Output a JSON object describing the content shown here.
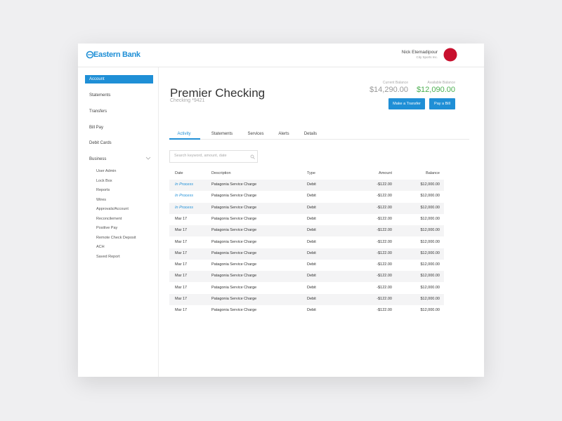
{
  "header": {
    "logo": "Eastern Bank",
    "user_name": "Nick Etemadipour",
    "company": "City Sports Inc."
  },
  "sidebar": {
    "items": [
      "Account",
      "Statements",
      "Transfers",
      "Bill Pay",
      "Debit Cards",
      "Business"
    ],
    "sub_items": [
      "User Admin",
      "Lock Box",
      "Reports",
      "Wires",
      "Approvals/Account",
      "Reconcilement",
      "Positive Pay",
      "Remote Check Deposit",
      "ACH",
      "Saved Report"
    ]
  },
  "account": {
    "title": "Premier Checking",
    "number": "Checking *9421",
    "current_balance_label": "Current Balance",
    "current_balance": "$14,290.00",
    "available_balance_label": "Available Balance",
    "available_balance": "$12,090.00"
  },
  "buttons": [
    "Make a Transfer",
    "Pay a Bill"
  ],
  "tabs": [
    "Activity",
    "Statements",
    "Services",
    "Alerts",
    "Details"
  ],
  "search_placeholder": "Search keyword, amount, date",
  "table": {
    "columns": [
      "Date",
      "Description",
      "Type",
      "Amount",
      "Balance"
    ],
    "rows": [
      [
        "In Process",
        "Patagonia Service Charge",
        "Debit",
        "-$122.00",
        "$12,000.00"
      ],
      [
        "In Process",
        "Patagonia Service Charge",
        "Debit",
        "-$122.00",
        "$12,000.00"
      ],
      [
        "In Process",
        "Patagonia Service Charge",
        "Debit",
        "-$122.00",
        "$12,000.00"
      ],
      [
        "Mar 17",
        "Patagonia Service Charge",
        "Debit",
        "-$122.00",
        "$12,000.00"
      ],
      [
        "Mar 17",
        "Patagonia Service Charge",
        "Debit",
        "-$122.00",
        "$12,000.00"
      ],
      [
        "Mar 17",
        "Patagonia Service Charge",
        "Debit",
        "-$122.00",
        "$12,000.00"
      ],
      [
        "Mar 17",
        "Patagonia Service Charge",
        "Debit",
        "-$122.00",
        "$12,000.00"
      ],
      [
        "Mar 17",
        "Patagonia Service Charge",
        "Debit",
        "-$122.00",
        "$12,000.00"
      ],
      [
        "Mar 17",
        "Patagonia Service Charge",
        "Debit",
        "-$122.00",
        "$12,000.00"
      ],
      [
        "Mar 17",
        "Patagonia Service Charge",
        "Debit",
        "-$122.00",
        "$12,000.00"
      ],
      [
        "Mar 17",
        "Patagonia Service Charge",
        "Debit",
        "-$122.00",
        "$12,000.00"
      ],
      [
        "Mar 17",
        "Patagonia Service Charge",
        "Debit",
        "-$122.00",
        "$12,000.00"
      ]
    ]
  }
}
